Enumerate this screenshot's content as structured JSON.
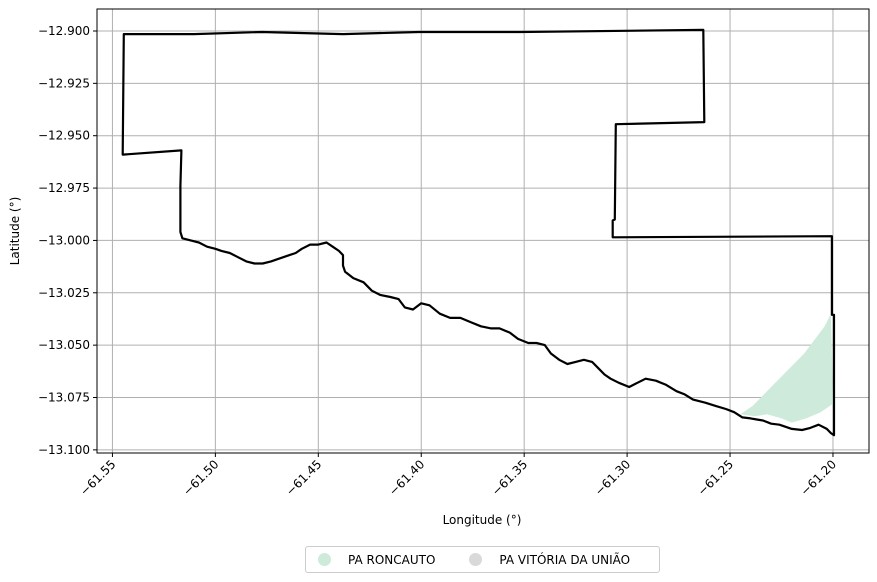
{
  "chart_data": {
    "type": "map",
    "xlabel": "Longitude (°)",
    "ylabel": "Latitude (°)",
    "xlim": [
      -61.5575,
      -61.1825
    ],
    "ylim": [
      -13.1015,
      -12.8895
    ],
    "xticks": [
      -61.55,
      -61.5,
      -61.45,
      -61.4,
      -61.35,
      -61.3,
      -61.25,
      -61.2
    ],
    "xtick_labels": [
      "−61.55",
      "−61.50",
      "−61.45",
      "−61.40",
      "−61.35",
      "−61.30",
      "−61.25",
      "−61.20"
    ],
    "yticks": [
      -12.9,
      -12.925,
      -12.95,
      -12.975,
      -13.0,
      -13.025,
      -13.05,
      -13.075,
      -13.1
    ],
    "ytick_labels": [
      "−12.900",
      "−12.925",
      "−12.950",
      "−12.975",
      "−13.000",
      "−13.025",
      "−13.050",
      "−13.075",
      "−13.100"
    ],
    "grid": true,
    "legend_position": "bottom-center",
    "series": [
      {
        "name": "PA RONCAUTO",
        "color": "#cdeadb",
        "kind": "polygon",
        "coords": [
          [
            -61.245,
            -13.083
          ],
          [
            -61.239,
            -13.079
          ],
          [
            -61.228,
            -13.068
          ],
          [
            -61.214,
            -13.054
          ],
          [
            -61.204,
            -13.041
          ],
          [
            -61.201,
            -13.035
          ],
          [
            -61.2005,
            -13.055
          ],
          [
            -61.2,
            -13.078
          ],
          [
            -61.206,
            -13.082
          ],
          [
            -61.213,
            -13.085
          ],
          [
            -61.22,
            -13.087
          ],
          [
            -61.225,
            -13.085
          ],
          [
            -61.232,
            -13.083
          ],
          [
            -61.238,
            -13.084
          ]
        ]
      },
      {
        "name": "PA VITÓRIA DA UNIÃO",
        "color": "#d9d9d9",
        "kind": "outline",
        "stroke": "#000000",
        "coords": [
          [
            -61.5445,
            -12.9015
          ],
          [
            -61.5105,
            -12.9015
          ],
          [
            -61.4775,
            -12.9005
          ],
          [
            -61.438,
            -12.9015
          ],
          [
            -61.401,
            -12.9005
          ],
          [
            -61.382,
            -12.9005
          ],
          [
            -61.352,
            -12.9005
          ],
          [
            -61.263,
            -12.8995
          ],
          [
            -61.2625,
            -12.9435
          ],
          [
            -61.3055,
            -12.9445
          ],
          [
            -61.306,
            -12.99
          ],
          [
            -61.307,
            -12.9905
          ],
          [
            -61.307,
            -12.9985
          ],
          [
            -61.2005,
            -12.998
          ],
          [
            -61.2005,
            -13.0355
          ],
          [
            -61.1995,
            -13.0355
          ],
          [
            -61.1995,
            -13.093
          ],
          [
            -61.201,
            -13.092
          ],
          [
            -61.203,
            -13.09
          ],
          [
            -61.207,
            -13.088
          ],
          [
            -61.211,
            -13.0895
          ],
          [
            -61.215,
            -13.0905
          ],
          [
            -61.22,
            -13.09
          ],
          [
            -61.223,
            -13.089
          ],
          [
            -61.226,
            -13.088
          ],
          [
            -61.23,
            -13.0875
          ],
          [
            -61.234,
            -13.086
          ],
          [
            -61.237,
            -13.0855
          ],
          [
            -61.24,
            -13.085
          ],
          [
            -61.244,
            -13.0845
          ],
          [
            -61.248,
            -13.082
          ],
          [
            -61.252,
            -13.0805
          ],
          [
            -61.257,
            -13.079
          ],
          [
            -61.262,
            -13.0775
          ],
          [
            -61.268,
            -13.076
          ],
          [
            -61.272,
            -13.0735
          ],
          [
            -61.276,
            -13.072
          ],
          [
            -61.281,
            -13.069
          ],
          [
            -61.286,
            -13.067
          ],
          [
            -61.291,
            -13.066
          ],
          [
            -61.295,
            -13.068
          ],
          [
            -61.299,
            -13.07
          ],
          [
            -61.304,
            -13.068
          ],
          [
            -61.308,
            -13.066
          ],
          [
            -61.311,
            -13.064
          ],
          [
            -61.314,
            -13.061
          ],
          [
            -61.317,
            -13.058
          ],
          [
            -61.321,
            -13.057
          ],
          [
            -61.325,
            -13.058
          ],
          [
            -61.329,
            -13.059
          ],
          [
            -61.333,
            -13.057
          ],
          [
            -61.337,
            -13.054
          ],
          [
            -61.34,
            -13.05
          ],
          [
            -61.344,
            -13.049
          ],
          [
            -61.348,
            -13.049
          ],
          [
            -61.353,
            -13.047
          ],
          [
            -61.357,
            -13.044
          ],
          [
            -61.362,
            -13.042
          ],
          [
            -61.366,
            -13.042
          ],
          [
            -61.371,
            -13.041
          ],
          [
            -61.376,
            -13.039
          ],
          [
            -61.381,
            -13.037
          ],
          [
            -61.386,
            -13.037
          ],
          [
            -61.391,
            -13.035
          ],
          [
            -61.396,
            -13.031
          ],
          [
            -61.4,
            -13.03
          ],
          [
            -61.404,
            -13.033
          ],
          [
            -61.408,
            -13.032
          ],
          [
            -61.411,
            -13.028
          ],
          [
            -61.415,
            -13.027
          ],
          [
            -61.42,
            -13.026
          ],
          [
            -61.424,
            -13.024
          ],
          [
            -61.428,
            -13.02
          ],
          [
            -61.433,
            -13.018
          ],
          [
            -61.437,
            -13.015
          ],
          [
            -61.438,
            -13.012
          ],
          [
            -61.438,
            -13.007
          ],
          [
            -61.44,
            -13.005
          ],
          [
            -61.443,
            -13.003
          ],
          [
            -61.446,
            -13.001
          ],
          [
            -61.45,
            -13.002
          ],
          [
            -61.454,
            -13.002
          ],
          [
            -61.458,
            -13.004
          ],
          [
            -61.461,
            -13.006
          ],
          [
            -61.464,
            -13.007
          ],
          [
            -61.467,
            -13.008
          ],
          [
            -61.47,
            -13.009
          ],
          [
            -61.473,
            -13.01
          ],
          [
            -61.477,
            -13.011
          ],
          [
            -61.481,
            -13.011
          ],
          [
            -61.485,
            -13.01
          ],
          [
            -61.489,
            -13.008
          ],
          [
            -61.493,
            -13.006
          ],
          [
            -61.497,
            -13.005
          ],
          [
            -61.5,
            -13.004
          ],
          [
            -61.504,
            -13.003
          ],
          [
            -61.508,
            -13.001
          ],
          [
            -61.512,
            -13.0
          ],
          [
            -61.516,
            -12.999
          ],
          [
            -61.517,
            -12.996
          ],
          [
            -61.517,
            -12.974
          ],
          [
            -61.5165,
            -12.957
          ],
          [
            -61.545,
            -12.959
          ],
          [
            -61.5445,
            -12.9015
          ]
        ]
      }
    ]
  },
  "legend": {
    "items": [
      {
        "label": "PA RONCAUTO",
        "color": "#cdeadb"
      },
      {
        "label": "PA VITÓRIA DA UNIÃO",
        "color": "#d9d9d9"
      }
    ]
  }
}
